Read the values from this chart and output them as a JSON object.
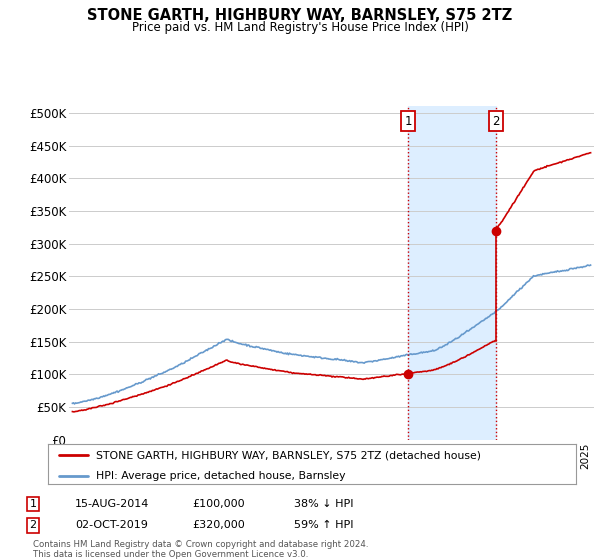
{
  "title": "STONE GARTH, HIGHBURY WAY, BARNSLEY, S75 2TZ",
  "subtitle": "Price paid vs. HM Land Registry's House Price Index (HPI)",
  "ylabel_ticks": [
    "£0",
    "£50K",
    "£100K",
    "£150K",
    "£200K",
    "£250K",
    "£300K",
    "£350K",
    "£400K",
    "£450K",
    "£500K"
  ],
  "ytick_vals": [
    0,
    50000,
    100000,
    150000,
    200000,
    250000,
    300000,
    350000,
    400000,
    450000,
    500000
  ],
  "ylim": [
    0,
    510000
  ],
  "xlim_start": 1994.8,
  "xlim_end": 2025.5,
  "sale1_date": 2014.62,
  "sale1_price": 100000,
  "sale1_label": "1",
  "sale2_date": 2019.75,
  "sale2_price": 320000,
  "sale2_label": "2",
  "hpi_color": "#6699cc",
  "sale_line_color": "#cc0000",
  "dot_color": "#cc0000",
  "shaded_region_color": "#ddeeff",
  "vline_color": "#cc0000",
  "vline_style": ":",
  "legend_label_red": "STONE GARTH, HIGHBURY WAY, BARNSLEY, S75 2TZ (detached house)",
  "legend_label_blue": "HPI: Average price, detached house, Barnsley",
  "table_row1": [
    "1",
    "15-AUG-2014",
    "£100,000",
    "38% ↓ HPI"
  ],
  "table_row2": [
    "2",
    "02-OCT-2019",
    "£320,000",
    "59% ↑ HPI"
  ],
  "footer": "Contains HM Land Registry data © Crown copyright and database right 2024.\nThis data is licensed under the Open Government Licence v3.0.",
  "background_color": "#ffffff",
  "grid_color": "#cccccc"
}
